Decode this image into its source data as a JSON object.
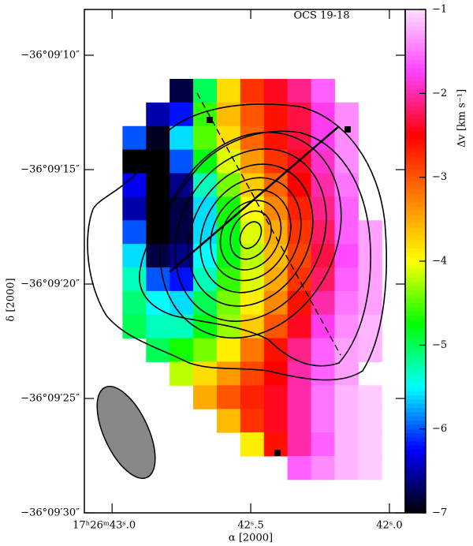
{
  "chart_data": {
    "type": "heatmap",
    "title": "OCS 19-18",
    "x_label": "α [2000]",
    "y_label": "δ [2000]",
    "colorbar_label": "Δv [km s⁻¹]",
    "xlim": [
      43.1,
      41.943
    ],
    "ylim": [
      8,
      30
    ],
    "xticks": [
      {
        "value": 43.0,
        "label": "17ʰ26ᵐ43ˢ.0"
      },
      {
        "value": 42.5,
        "label": "42ˢ.5"
      },
      {
        "value": 42.0,
        "label": "42ˢ.0"
      }
    ],
    "yticks": [
      {
        "value": 10,
        "label": "−36°09′10″"
      },
      {
        "value": 15,
        "label": "−36°09′15″"
      },
      {
        "value": 20,
        "label": "−36°09′20″"
      },
      {
        "value": 25,
        "label": "−36°09′25″"
      },
      {
        "value": 30,
        "label": "−36°09′30″"
      }
    ],
    "clim": [
      -7,
      -1
    ],
    "cticks": [
      {
        "value": -1,
        "label": "−1"
      },
      {
        "value": -2,
        "label": "−2"
      },
      {
        "value": -3,
        "label": "−3"
      },
      {
        "value": -4,
        "label": "−4"
      },
      {
        "value": -5,
        "label": "−5"
      },
      {
        "value": -6,
        "label": "−6"
      },
      {
        "value": -7,
        "label": "−7"
      }
    ],
    "colormap": [
      "#ffe0ff",
      "#ff40ff",
      "#ff0000",
      "#ff8000",
      "#ffff00",
      "#00ff00",
      "#00ffff",
      "#0000ff",
      "#000000"
    ],
    "x": [
      43.005,
      42.92,
      42.835,
      42.75,
      42.665,
      42.58,
      42.495,
      42.41,
      42.325,
      42.24,
      42.155,
      42.07
    ],
    "y": [
      11.55,
      12.58,
      13.61,
      14.64,
      15.67,
      16.7,
      17.73,
      18.76,
      19.79,
      20.82,
      21.85,
      22.88,
      23.91,
      24.94,
      25.97,
      27.0,
      28.03
    ],
    "z": [
      [
        null,
        null,
        null,
        -6.8,
        -5.0,
        -3.8,
        -2.8,
        -2.4,
        -2.1,
        -1.6,
        null,
        null
      ],
      [
        null,
        null,
        -6.5,
        -6.2,
        -4.6,
        -3.6,
        -3.0,
        -2.6,
        -2.3,
        -1.8,
        -1.4,
        null
      ],
      [
        null,
        -6.0,
        -6.9,
        -5.6,
        -4.5,
        -3.8,
        -3.1,
        -2.6,
        -2.3,
        -1.8,
        -1.4,
        null
      ],
      [
        null,
        -7,
        -7,
        -6.0,
        -4.8,
        -4.1,
        -3.4,
        -2.8,
        -2.4,
        -1.9,
        -1.4,
        null
      ],
      [
        null,
        -6.3,
        -7,
        -6.6,
        -5.3,
        -4.4,
        -3.7,
        -3.1,
        -2.5,
        -2.0,
        -1.5,
        null
      ],
      [
        null,
        -6.5,
        -7,
        -6.8,
        -5.6,
        -4.7,
        -4.0,
        -3.3,
        -2.7,
        -2.1,
        -1.6,
        null
      ],
      [
        null,
        -6.0,
        -7,
        -6.8,
        -5.6,
        -4.8,
        -4.1,
        -3.5,
        -2.8,
        -2.2,
        -1.6,
        -1.3
      ],
      [
        null,
        -5.6,
        -6.8,
        -6.6,
        -5.5,
        -4.8,
        -4.2,
        -3.6,
        -2.9,
        -2.3,
        -1.7,
        -1.3
      ],
      [
        null,
        -5.3,
        -6.0,
        -6.2,
        -5.3,
        -4.6,
        -4.1,
        -3.5,
        -2.8,
        -2.2,
        -1.6,
        -1.3
      ],
      [
        null,
        -5.1,
        -5.5,
        -5.6,
        -5.0,
        -4.4,
        -3.9,
        -3.3,
        -2.6,
        -2.0,
        -1.5,
        -1.3
      ],
      [
        null,
        -5.0,
        -5.3,
        -5.3,
        -4.8,
        -4.3,
        -3.7,
        -3.0,
        -2.4,
        -1.8,
        -1.4,
        -1.2
      ],
      [
        null,
        null,
        -5.0,
        -4.7,
        -4.4,
        -3.9,
        -3.2,
        -2.6,
        -2.1,
        -1.6,
        -1.3,
        -1.2
      ],
      [
        null,
        null,
        null,
        -4.2,
        -3.8,
        -3.4,
        -2.9,
        -2.5,
        -2.0,
        -1.6,
        -1.3,
        null
      ],
      [
        null,
        null,
        null,
        null,
        -3.5,
        -3.0,
        -2.7,
        -2.4,
        -2.0,
        -1.5,
        -1.2,
        -1.1
      ],
      [
        null,
        null,
        null,
        null,
        null,
        -3.6,
        -2.8,
        -2.4,
        -2.0,
        -1.5,
        -1.2,
        -1.1
      ],
      [
        null,
        null,
        null,
        null,
        null,
        null,
        -3.9,
        -2.6,
        -2.0,
        -1.6,
        -1.2,
        -1.1
      ],
      [
        null,
        null,
        null,
        null,
        null,
        null,
        null,
        null,
        -1.6,
        -1.4,
        -1.2,
        -1.1
      ]
    ]
  }
}
